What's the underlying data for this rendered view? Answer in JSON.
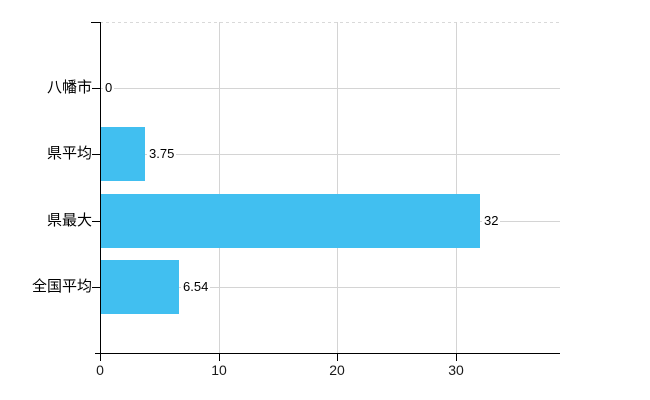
{
  "chart_data": {
    "type": "bar",
    "orientation": "horizontal",
    "title": "",
    "xlabel": "",
    "ylabel": "",
    "categories": [
      "八幡市",
      "県平均",
      "県最大",
      "全国平均"
    ],
    "values": [
      0,
      3.75,
      32,
      6.54
    ],
    "value_labels": [
      "0",
      "3.75",
      "32",
      "6.54"
    ],
    "xlim": [
      0,
      38.8
    ],
    "xticks": [
      0,
      10,
      20,
      30
    ],
    "xtick_labels": [
      "0",
      "10",
      "20",
      "30"
    ],
    "grid": true,
    "legend": false,
    "colors": {
      "bar": "#41BFF0",
      "grid": "#d4d4d4",
      "top_boundary": "#d9d9d9",
      "axis": "#000000",
      "text": "#000000"
    }
  }
}
